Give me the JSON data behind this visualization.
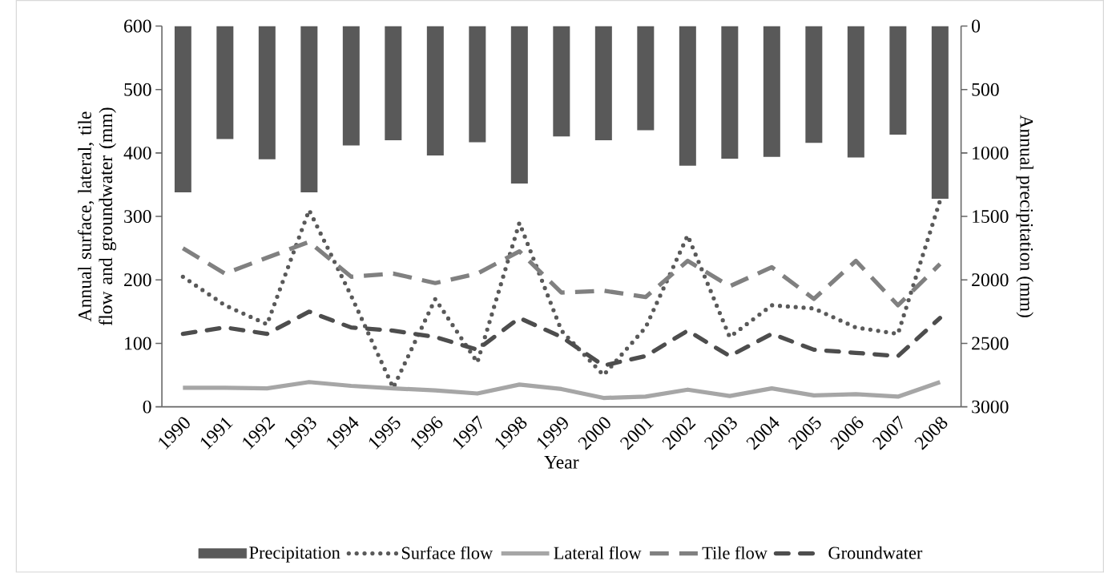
{
  "chart_data": {
    "type": "line",
    "xlabel": "Year",
    "ylabel": "Annual surface, lateral, tile flow and groundwater (mm)",
    "y2label": "Annual precipitation (mm)",
    "categories": [
      "1990",
      "1991",
      "1992",
      "1993",
      "1994",
      "1995",
      "1996",
      "1997",
      "1998",
      "1999",
      "2000",
      "2001",
      "2002",
      "2003",
      "2004",
      "2005",
      "2006",
      "2007",
      "2008"
    ],
    "series": [
      {
        "name": "Precipitation",
        "type": "bar",
        "axis": "y2",
        "color": "#595959",
        "values": [
          1310,
          890,
          1050,
          1310,
          940,
          900,
          1020,
          915,
          1240,
          870,
          900,
          820,
          1100,
          1045,
          1030,
          920,
          1035,
          855,
          1360
        ]
      },
      {
        "name": "Surface flow",
        "color": "#595959",
        "line_style": "dotted",
        "values": [
          205,
          160,
          130,
          310,
          175,
          30,
          170,
          70,
          290,
          120,
          50,
          125,
          270,
          110,
          160,
          155,
          125,
          115,
          325
        ]
      },
      {
        "name": "Lateral flow",
        "color": "#a6a6a6",
        "line_style": "solid",
        "values": [
          30,
          30,
          29,
          39,
          33,
          29,
          26,
          21,
          35,
          28,
          14,
          16,
          27,
          17,
          29,
          18,
          20,
          16,
          39
        ]
      },
      {
        "name": "Tile flow",
        "color": "#808080",
        "line_style": "dashed",
        "values": [
          250,
          210,
          235,
          260,
          205,
          210,
          195,
          210,
          245,
          180,
          183,
          173,
          230,
          190,
          220,
          170,
          230,
          160,
          225
        ]
      },
      {
        "name": "Groundwater",
        "color": "#4d4d4d",
        "line_style": "dashdot",
        "values": [
          115,
          125,
          115,
          150,
          125,
          120,
          110,
          90,
          140,
          110,
          65,
          80,
          120,
          80,
          115,
          90,
          85,
          80,
          140
        ]
      }
    ],
    "ylim": [
      0,
      600
    ],
    "yticks": [
      0,
      100,
      200,
      300,
      400,
      500,
      600
    ],
    "y2lim": [
      3000,
      0
    ],
    "y2ticks": [
      0,
      500,
      1000,
      1500,
      2000,
      2500,
      3000
    ],
    "legend": "bottom",
    "grid": false
  }
}
